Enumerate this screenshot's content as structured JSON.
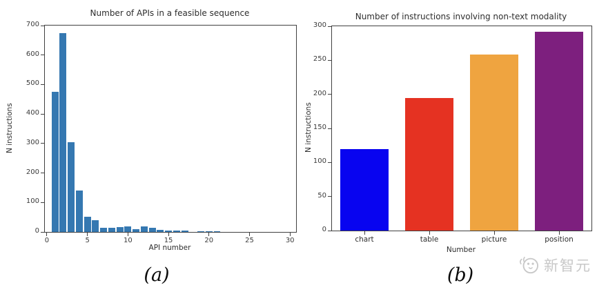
{
  "page": {
    "background": "#ffffff"
  },
  "captions": {
    "a": "(a)",
    "b": "(b)"
  },
  "watermark": {
    "text": "新智元",
    "icon": "xinzhiyuan-mascot-icon",
    "color": "#c8c8c8"
  },
  "chart_data": [
    {
      "id": "apis-histogram",
      "type": "bar",
      "title": "Number of APIs in a feasible sequence",
      "xlabel": "API number",
      "ylabel": "N instructions",
      "x": [
        1,
        2,
        3,
        4,
        5,
        6,
        7,
        8,
        9,
        10,
        11,
        12,
        13,
        14,
        15,
        16,
        17,
        19,
        20,
        21
      ],
      "values": [
        475,
        675,
        305,
        140,
        52,
        40,
        13,
        15,
        17,
        18,
        10,
        19,
        14,
        8,
        5,
        4,
        5,
        3,
        3,
        3
      ],
      "bar_color": "#3578b1",
      "bar_width_units": 0.85,
      "xlim": [
        -0.25,
        30.75
      ],
      "ylim": [
        0,
        700
      ],
      "xticks": [
        0,
        5,
        10,
        15,
        20,
        25,
        30
      ],
      "yticks": [
        0,
        100,
        200,
        300,
        400,
        500,
        600,
        700
      ],
      "grid": false,
      "legend": null
    },
    {
      "id": "non-text-modality-bar",
      "type": "bar",
      "title": "Number of instructions involving non-text modality",
      "xlabel": "Number",
      "ylabel": "N instructions",
      "categories": [
        "chart",
        "table",
        "picture",
        "position"
      ],
      "values": [
        120,
        195,
        258,
        292
      ],
      "colors": [
        "#0804f0",
        "#e53222",
        "#efa440",
        "#7d1f7e"
      ],
      "ylim": [
        0,
        300
      ],
      "yticks": [
        0,
        50,
        100,
        150,
        200,
        250,
        300
      ],
      "grid": false,
      "legend": null
    }
  ]
}
